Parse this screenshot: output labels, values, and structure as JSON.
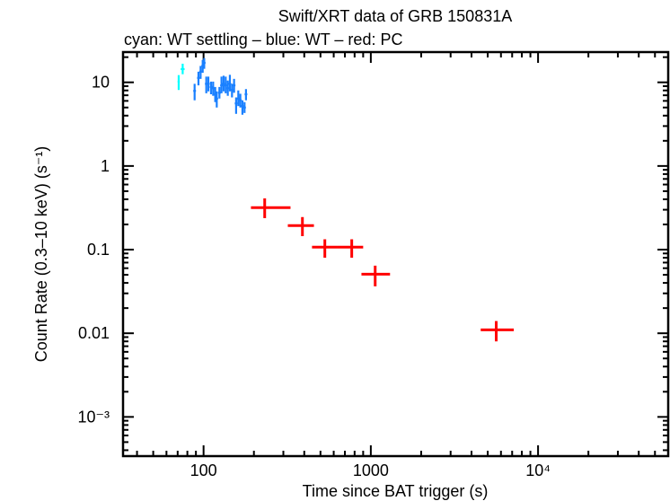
{
  "chart_data": {
    "type": "scatter",
    "title": "Swift/XRT data of GRB 150831A",
    "subtitle": "cyan: WT settling – blue: WT – red: PC",
    "xlabel": "Time since BAT trigger (s)",
    "ylabel": "Count Rate (0.3–10 keV) (s⁻¹)",
    "xscale": "log",
    "yscale": "log",
    "xlim": [
      33,
      60000
    ],
    "ylim": [
      0.00034,
      23
    ],
    "grid": false,
    "xticks": [
      {
        "value": 100,
        "label": "100"
      },
      {
        "value": 1000,
        "label": "1000"
      },
      {
        "value": 10000,
        "label": "10⁴"
      }
    ],
    "yticks": [
      {
        "value": 10,
        "label": "10"
      },
      {
        "value": 1,
        "label": "1"
      },
      {
        "value": 0.1,
        "label": "0.1"
      },
      {
        "value": 0.01,
        "label": "0.01"
      },
      {
        "value": 0.001,
        "label": "10⁻³"
      }
    ],
    "colors": {
      "cyan": "#00ffff",
      "blue": "#1a80ff",
      "red": "#ff0000"
    },
    "series": [
      {
        "mode": "WT settling",
        "color": "#00ffff",
        "points": [
          {
            "t": 71,
            "t_lo": 70,
            "t_hi": 72,
            "rate": 10.2,
            "rate_lo": 8.1,
            "rate_hi": 12.2
          },
          {
            "t": 75,
            "t_lo": 73,
            "t_hi": 77,
            "rate": 14.4,
            "rate_lo": 12.5,
            "rate_hi": 16.7
          }
        ]
      },
      {
        "mode": "WT",
        "color": "#1a80ff",
        "points": [
          {
            "t": 88.4,
            "rate": 7.9,
            "rate_lo": 6.1,
            "rate_hi": 9.6
          },
          {
            "t": 93.2,
            "rate": 11.3,
            "rate_lo": 9.2,
            "rate_hi": 13.4
          },
          {
            "t": 96.0,
            "rate": 13.4,
            "rate_lo": 11.0,
            "rate_hi": 15.7
          },
          {
            "t": 98.8,
            "rate": 15.7,
            "rate_lo": 13.0,
            "rate_hi": 18.5
          },
          {
            "t": 100.9,
            "rate": 17.1,
            "rate_lo": 14.5,
            "rate_hi": 19.5
          },
          {
            "t": 103.8,
            "rate": 9.6,
            "rate_lo": 7.4,
            "rate_hi": 11.7
          },
          {
            "t": 106.8,
            "rate": 9.6,
            "rate_lo": 7.8,
            "rate_hi": 11.7
          },
          {
            "t": 110.8,
            "rate": 8.8,
            "rate_lo": 7.2,
            "rate_hi": 10.2
          },
          {
            "t": 114.1,
            "rate": 8.5,
            "rate_lo": 6.9,
            "rate_hi": 10.2
          },
          {
            "t": 117.4,
            "rate": 7.2,
            "rate_lo": 5.8,
            "rate_hi": 8.8
          },
          {
            "t": 119.9,
            "rate": 6.4,
            "rate_lo": 5.0,
            "rate_hi": 7.8
          },
          {
            "t": 124.4,
            "rate": 7.5,
            "rate_lo": 6.4,
            "rate_hi": 8.8
          },
          {
            "t": 128.0,
            "rate": 9.2,
            "rate_lo": 7.4,
            "rate_hi": 11.7
          },
          {
            "t": 131.7,
            "rate": 9.6,
            "rate_lo": 7.8,
            "rate_hi": 12.0
          },
          {
            "t": 135.6,
            "rate": 9.2,
            "rate_lo": 7.4,
            "rate_hi": 11.7
          },
          {
            "t": 139.6,
            "rate": 8.5,
            "rate_lo": 6.9,
            "rate_hi": 10.5
          },
          {
            "t": 143.6,
            "rate": 9.6,
            "rate_lo": 7.8,
            "rate_hi": 12.3
          },
          {
            "t": 147.9,
            "rate": 8.1,
            "rate_lo": 6.6,
            "rate_hi": 9.6
          },
          {
            "t": 152.2,
            "rate": 9.2,
            "rate_lo": 7.5,
            "rate_hi": 11.0
          },
          {
            "t": 156.5,
            "rate": 5.6,
            "rate_lo": 4.2,
            "rate_hi": 6.6
          },
          {
            "t": 161.3,
            "rate": 6.4,
            "rate_lo": 5.2,
            "rate_hi": 8.0
          },
          {
            "t": 165.9,
            "rate": 6.1,
            "rate_lo": 5.0,
            "rate_hi": 7.3
          },
          {
            "t": 170.7,
            "rate": 5.2,
            "rate_lo": 4.1,
            "rate_hi": 6.1
          },
          {
            "t": 175.8,
            "rate": 5.0,
            "rate_lo": 4.3,
            "rate_hi": 5.8
          },
          {
            "t": 179.3,
            "rate": 7.2,
            "rate_lo": 6.1,
            "rate_hi": 8.3
          }
        ]
      },
      {
        "mode": "PC",
        "color": "#ff0000",
        "points": [
          {
            "t": 232,
            "t_lo": 192,
            "t_hi": 331,
            "rate": 0.318,
            "rate_lo": 0.238,
            "rate_hi": 0.41
          },
          {
            "t": 390,
            "t_lo": 319,
            "t_hi": 457,
            "rate": 0.194,
            "rate_lo": 0.145,
            "rate_hi": 0.245
          },
          {
            "t": 531,
            "t_lo": 445,
            "t_hi": 630,
            "rate": 0.107,
            "rate_lo": 0.08,
            "rate_hi": 0.133
          },
          {
            "t": 769,
            "t_lo": 630,
            "t_hi": 900,
            "rate": 0.107,
            "rate_lo": 0.08,
            "rate_hi": 0.133
          },
          {
            "t": 1062,
            "t_lo": 879,
            "t_hi": 1303,
            "rate": 0.0508,
            "rate_lo": 0.0364,
            "rate_hi": 0.0643
          },
          {
            "t": 5620,
            "t_lo": 4540,
            "t_hi": 7160,
            "rate": 0.011,
            "rate_lo": 0.008,
            "rate_hi": 0.014
          }
        ]
      }
    ]
  }
}
